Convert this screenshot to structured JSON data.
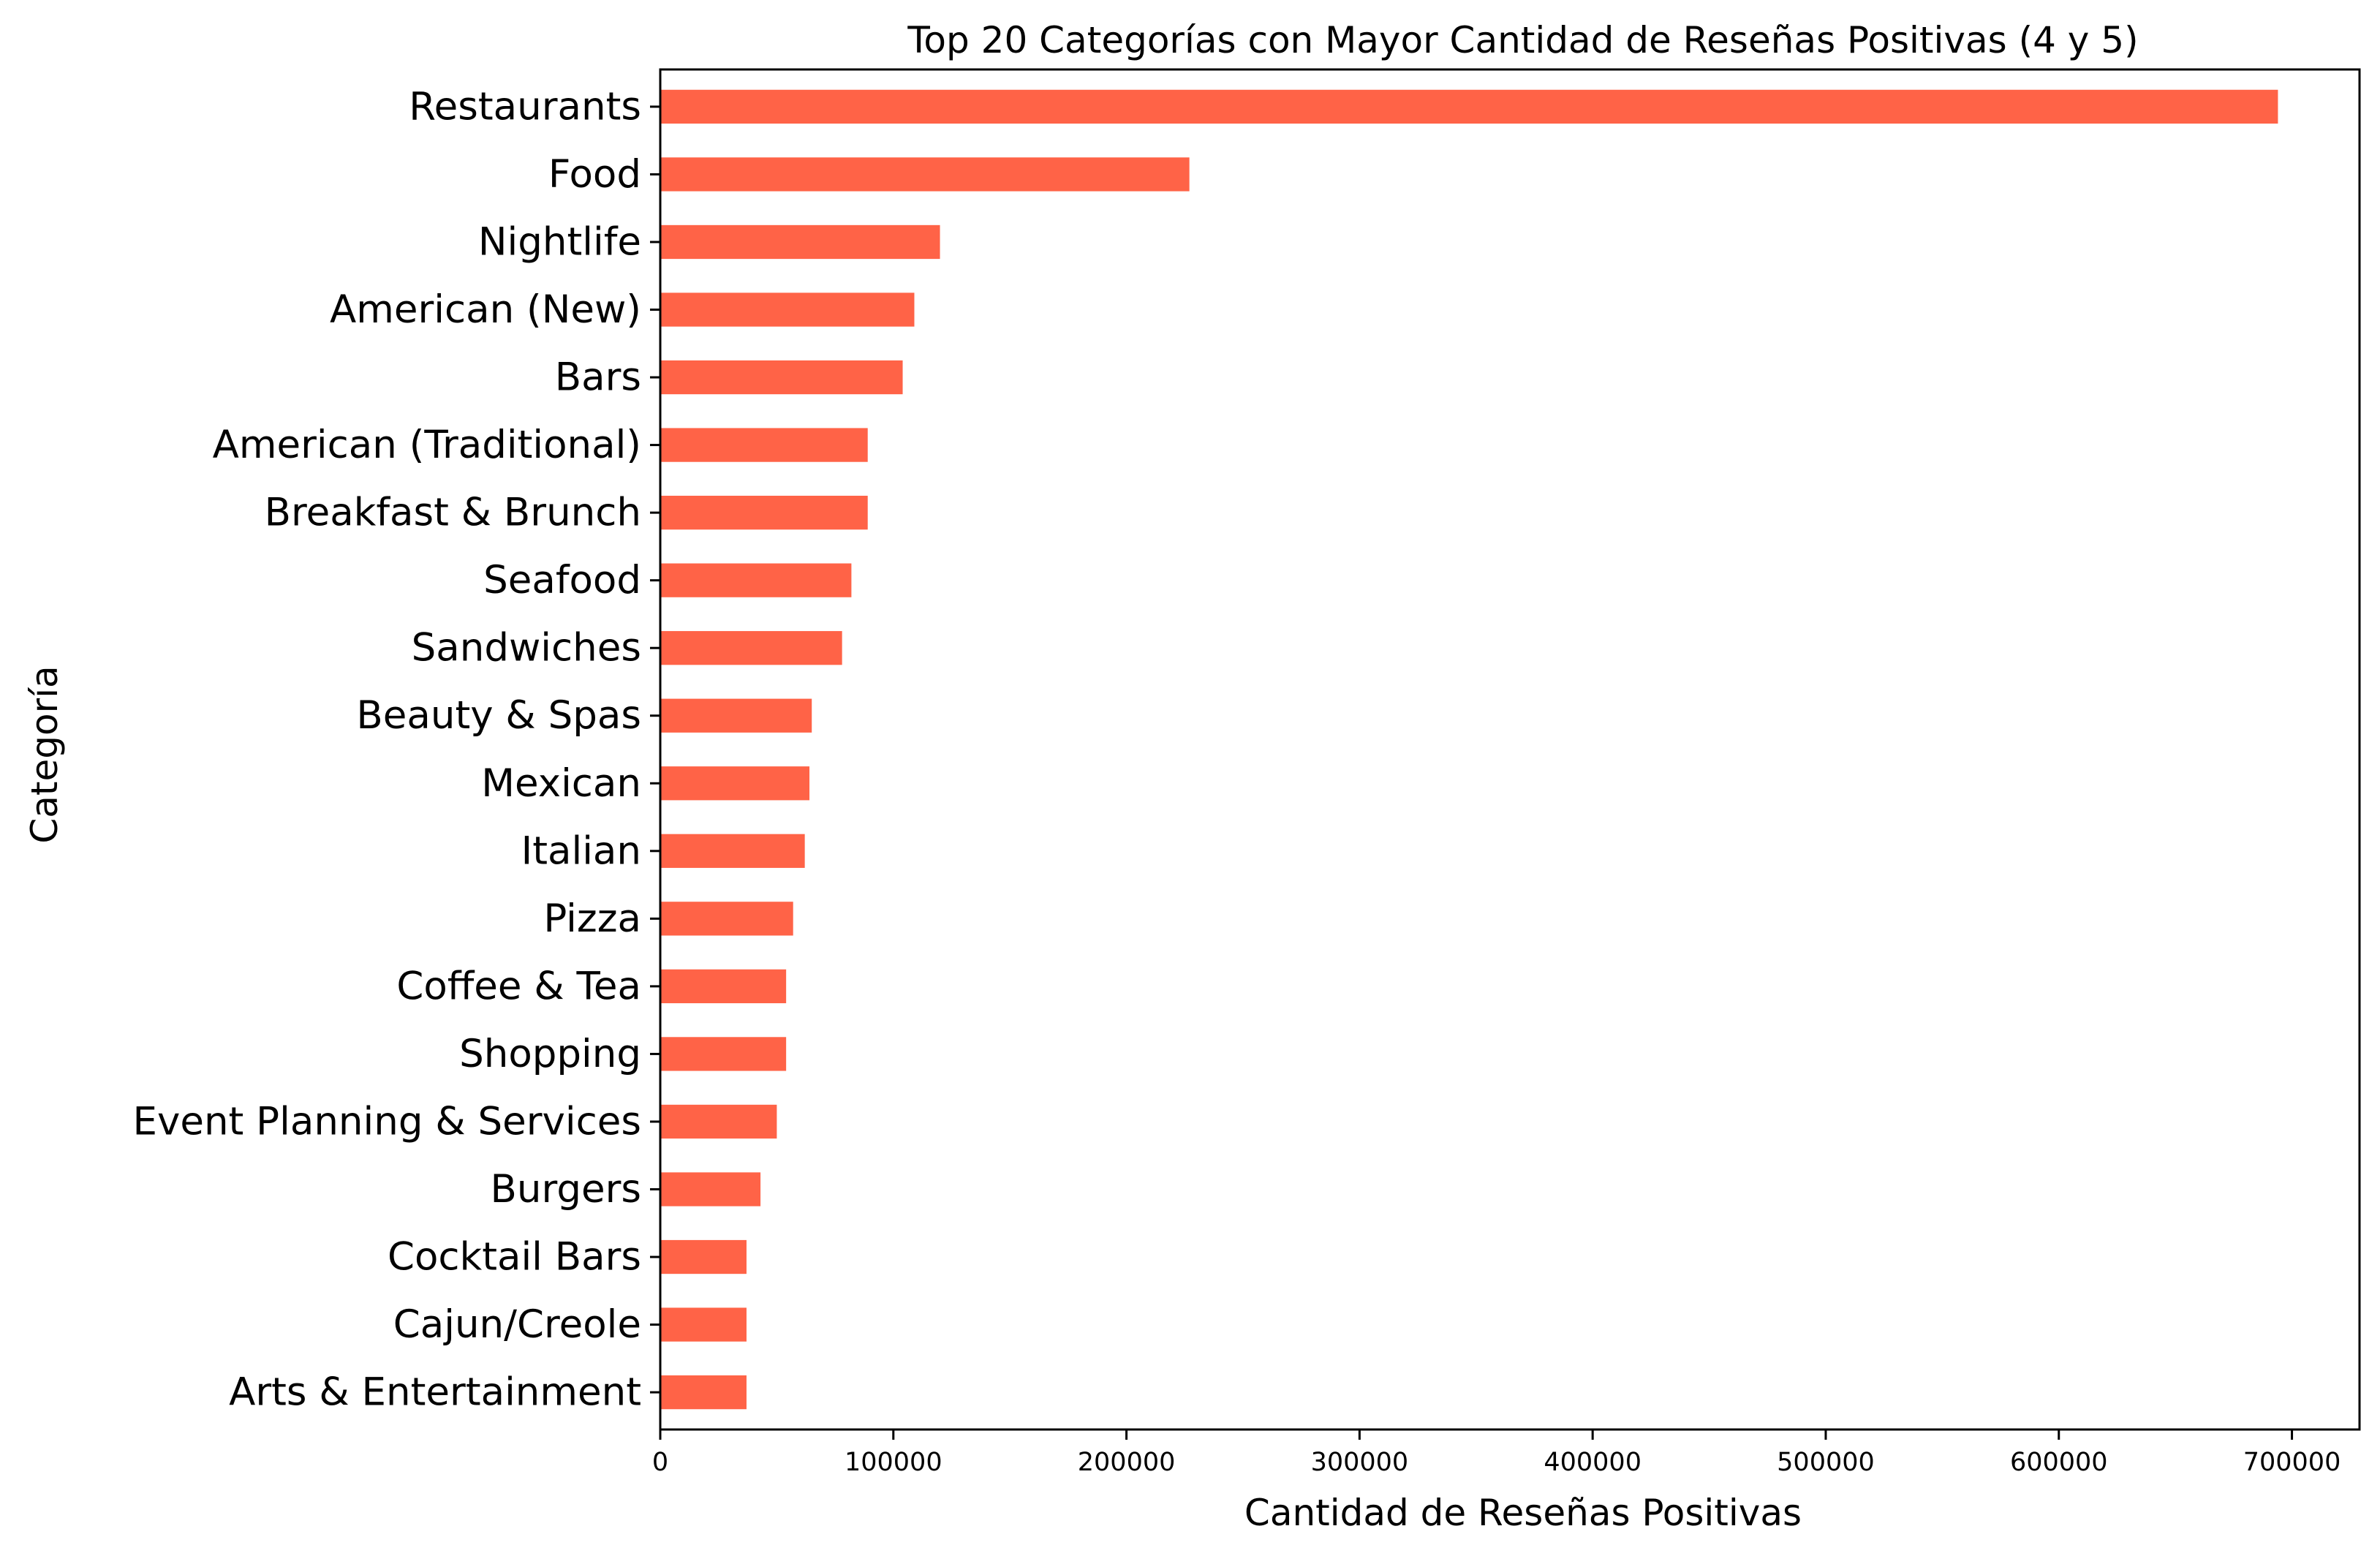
{
  "chart_data": {
    "type": "bar",
    "orientation": "horizontal",
    "title": "Top 20 Categorías con Mayor Cantidad de Reseñas Positivas (4 y 5)",
    "xlabel": "Cantidad de Reseñas Positivas",
    "ylabel": "Categoría",
    "categories": [
      "Restaurants",
      "Food",
      "Nightlife",
      "American (New)",
      "Bars",
      "American (Traditional)",
      "Breakfast & Brunch",
      "Seafood",
      "Sandwiches",
      "Beauty & Spas",
      "Mexican",
      "Italian",
      "Pizza",
      "Coffee & Tea",
      "Shopping",
      "Event Planning & Services",
      "Burgers",
      "Cocktail Bars",
      "Cajun/Creole",
      "Arts & Entertainment"
    ],
    "values": [
      694000,
      227000,
      120000,
      109000,
      104000,
      89000,
      89000,
      82000,
      78000,
      65000,
      64000,
      62000,
      57000,
      54000,
      54000,
      50000,
      43000,
      37000,
      37000,
      37000
    ],
    "xlim": [
      0,
      729000
    ],
    "xticks": [
      0,
      100000,
      200000,
      300000,
      400000,
      500000,
      600000,
      700000
    ],
    "xtick_labels": [
      "0",
      "100000",
      "200000",
      "300000",
      "400000",
      "500000",
      "600000",
      "700000"
    ],
    "bar_color": "#ff6347",
    "grid": false,
    "legend": "none"
  }
}
